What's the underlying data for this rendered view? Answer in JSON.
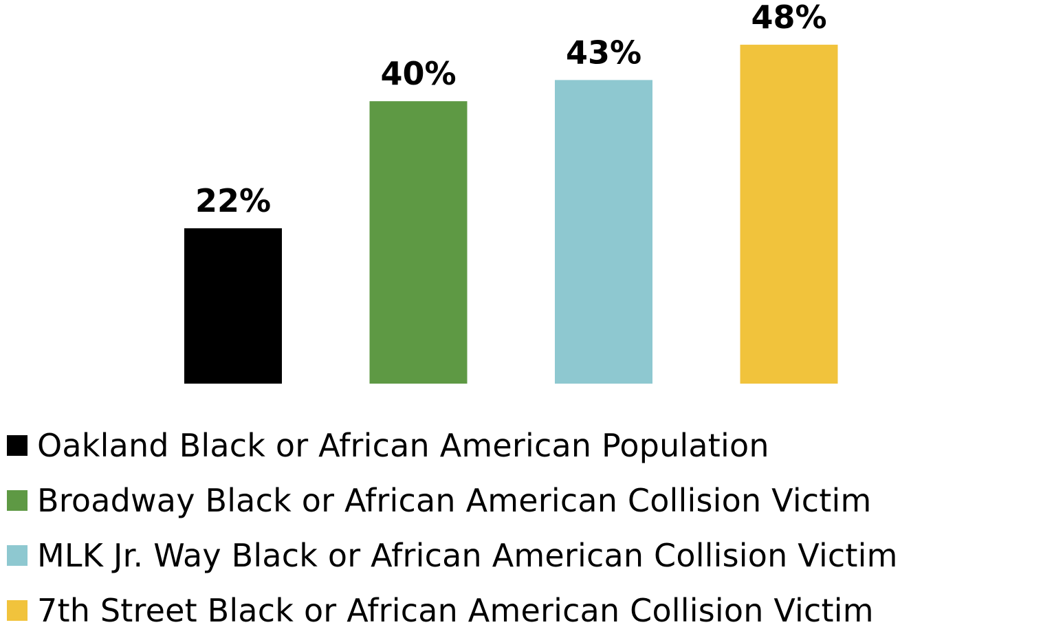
{
  "chart_data": {
    "type": "bar",
    "categories": [
      "Oakland Black or African American Population",
      "Broadway Black or African American Collision Victim",
      "MLK Jr. Way Black or African American Collision Victim",
      "7th Street Black or African American Collision Victim"
    ],
    "values": [
      22,
      40,
      43,
      48
    ],
    "value_labels": [
      "22%",
      "40%",
      "43%",
      "48%"
    ],
    "colors": [
      "#000000",
      "#5e9944",
      "#8ec8d0",
      "#f1c33c"
    ],
    "unit": "%",
    "ylim": [
      0,
      50
    ],
    "grid": false,
    "axes_visible": false,
    "legend_position": "bottom"
  },
  "legend": {
    "items": [
      {
        "label": "Oakland Black or African American Population",
        "color": "#000000"
      },
      {
        "label": "Broadway Black or African American Collision Victim",
        "color": "#5e9944"
      },
      {
        "label": "MLK Jr. Way Black or African American Collision Victim",
        "color": "#8ec8d0"
      },
      {
        "label": "7th Street Black or African American Collision Victim",
        "color": "#f1c33c"
      }
    ]
  }
}
